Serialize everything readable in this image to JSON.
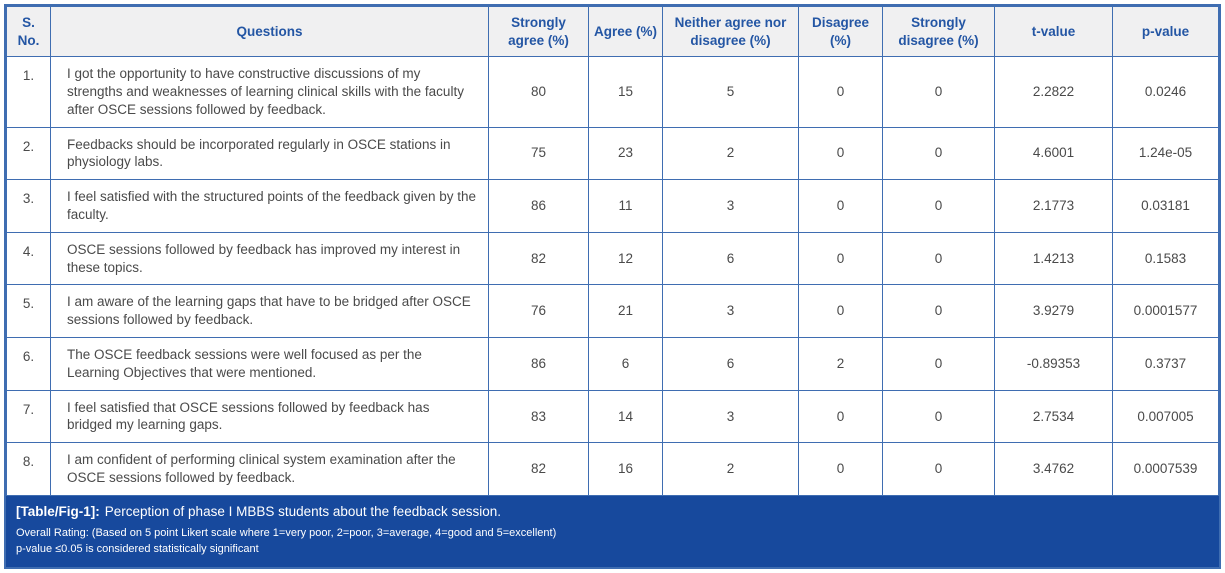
{
  "colors": {
    "accent": "#2456a4",
    "border": "#3f6db1",
    "header_bg": "#f0f0f1",
    "footer_bg": "#17499d",
    "body_text": "#4a4a4a"
  },
  "table": {
    "columns": [
      "S. No.",
      "Questions",
      "Strongly agree (%)",
      "Agree (%)",
      "Neither agree nor disagree (%)",
      "Disagree (%)",
      "Strongly disagree (%)",
      "t-value",
      "p-value"
    ],
    "cell_names": [
      "sno-cell",
      "question-cell",
      "strongly-agree-cell",
      "agree-cell",
      "neither-agree-nor-disagree-cell",
      "disagree-cell",
      "strongly-disagree-cell",
      "t-value-cell",
      "p-value-cell"
    ],
    "rows": [
      {
        "cells": [
          "1.",
          "I got the opportunity to have constructive discussions of my strengths and weaknesses of learning clinical skills with the faculty after OSCE sessions followed by feedback.",
          "80",
          "15",
          "5",
          "0",
          "0",
          "2.2822",
          "0.0246"
        ]
      },
      {
        "cells": [
          "2.",
          "Feedbacks should be incorporated regularly in OSCE stations in physiology labs.",
          "75",
          "23",
          "2",
          "0",
          "0",
          "4.6001",
          "1.24e-05"
        ]
      },
      {
        "cells": [
          "3.",
          "I feel satisfied with the structured points of the feedback given by the faculty.",
          "86",
          "11",
          "3",
          "0",
          "0",
          "2.1773",
          "0.03181"
        ]
      },
      {
        "cells": [
          "4.",
          "OSCE sessions followed by feedback has improved my interest in these topics.",
          "82",
          "12",
          "6",
          "0",
          "0",
          "1.4213",
          "0.1583"
        ]
      },
      {
        "cells": [
          "5.",
          "I am aware of the learning gaps that have to be bridged after OSCE sessions followed by feedback.",
          "76",
          "21",
          "3",
          "0",
          "0",
          "3.9279",
          "0.0001577"
        ]
      },
      {
        "cells": [
          "6.",
          "The OSCE feedback sessions were well focused as per the Learning Objectives that were mentioned.",
          "86",
          "6",
          "6",
          "2",
          "0",
          "-0.89353",
          "0.3737"
        ]
      },
      {
        "cells": [
          "7.",
          "I feel satisfied that OSCE sessions followed by feedback has bridged my learning gaps.",
          "83",
          "14",
          "3",
          "0",
          "0",
          "2.7534",
          "0.007005"
        ]
      },
      {
        "cells": [
          "8.",
          "I am confident of performing clinical system examination after the OSCE sessions followed by feedback.",
          "82",
          "16",
          "2",
          "0",
          "0",
          "3.4762",
          "0.0007539"
        ]
      }
    ]
  },
  "footer": {
    "caption_label": "[Table/Fig-1]:",
    "caption_text": "Perception of phase I MBBS students about the feedback session.",
    "rating_note": "Overall Rating: (Based on 5 point Likert scale where 1=very poor, 2=poor, 3=average, 4=good and 5=excellent)",
    "pvalue_note": "p-value ≤0.05 is considered statistically significant"
  }
}
